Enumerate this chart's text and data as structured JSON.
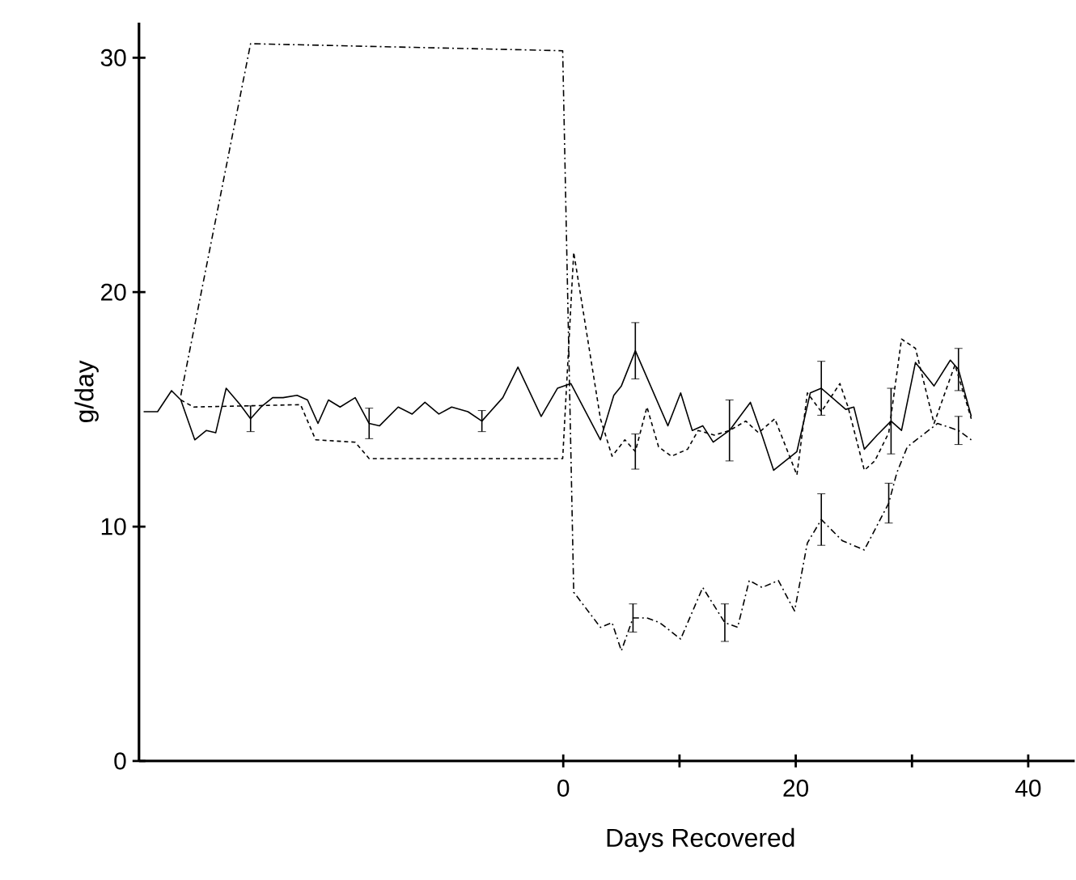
{
  "chart_data": {
    "type": "line",
    "xlabel": "Days Recovered",
    "ylabel": "g/day",
    "xlim": [
      -36.5,
      44
    ],
    "ylim": [
      0,
      31.5
    ],
    "xticks": [
      0,
      {
        "value": 10,
        "label": null
      },
      20,
      {
        "value": 30,
        "label": null
      },
      40
    ],
    "yticks": [
      0,
      10,
      20,
      30
    ],
    "series": [
      {
        "color": "#000000",
        "line_style": "solid",
        "x": [
          -36.1,
          -34.9,
          -33.7,
          -32.9,
          -31.7,
          -30.7,
          -29.9,
          -29.0,
          -27.8,
          -26.9,
          -26.0,
          -25.0,
          -24.1,
          -22.9,
          -22.0,
          -21.1,
          -20.2,
          -19.2,
          -17.9,
          -16.7,
          -15.8,
          -14.2,
          -13.0,
          -11.9,
          -10.7,
          -9.6,
          -8.2,
          -7.0,
          -5.2,
          -3.9,
          -1.9,
          -0.5,
          0.65,
          3.2,
          4.35,
          5.0,
          6.2,
          9.0,
          10.1,
          11.1,
          12.0,
          12.9,
          14.3,
          16.1,
          17.1,
          18.1,
          20.1,
          21.25,
          22.2,
          24.3,
          25.0,
          25.9,
          27.0,
          28.2,
          29.1,
          30.3,
          31.9,
          33.3,
          34.0,
          35.1
        ],
        "values": [
          14.9,
          14.9,
          15.8,
          15.4,
          13.7,
          14.1,
          14.0,
          15.9,
          15.2,
          14.6,
          15.1,
          15.5,
          15.5,
          15.6,
          15.4,
          14.4,
          15.4,
          15.1,
          15.5,
          14.4,
          14.3,
          15.1,
          14.8,
          15.3,
          14.8,
          15.1,
          14.9,
          14.5,
          15.5,
          16.8,
          14.7,
          15.9,
          16.1,
          13.7,
          15.6,
          16.0,
          17.5,
          14.3,
          15.7,
          14.1,
          14.3,
          13.6,
          14.1,
          15.3,
          13.9,
          12.4,
          13.2,
          15.7,
          15.9,
          15.0,
          15.1,
          13.3,
          13.9,
          14.5,
          14.1,
          17.0,
          16.0,
          17.1,
          16.7,
          14.7
        ],
        "errors": [
          null,
          null,
          null,
          null,
          null,
          null,
          null,
          null,
          null,
          0.55,
          null,
          null,
          null,
          null,
          null,
          null,
          null,
          null,
          null,
          0.65,
          null,
          null,
          null,
          null,
          null,
          null,
          null,
          0.45,
          null,
          null,
          null,
          null,
          null,
          null,
          null,
          null,
          1.2,
          null,
          null,
          null,
          null,
          null,
          1.3,
          null,
          null,
          null,
          null,
          null,
          1.15,
          null,
          null,
          null,
          null,
          1.4,
          null,
          null,
          null,
          null,
          0.9,
          null
        ]
      },
      {
        "color": "#000000",
        "line_style": "dotted",
        "x": [
          -32.9,
          -31.8,
          -22.6,
          -21.3,
          -17.9,
          -16.7,
          -0.05,
          0.9,
          3.2,
          4.2,
          5.3,
          6.2,
          7.2,
          8.2,
          9.3,
          10.7,
          11.6,
          13.0,
          14.3,
          15.7,
          16.8,
          18.2,
          20.1,
          21.0,
          22.2,
          23.8,
          24.5,
          25.9,
          26.8,
          28.0,
          29.1,
          30.3,
          31.9,
          33.7,
          35.1
        ],
        "values": [
          15.4,
          15.1,
          15.2,
          13.7,
          13.6,
          12.9,
          12.9,
          21.7,
          14.6,
          13.0,
          13.7,
          13.2,
          15.1,
          13.4,
          13.0,
          13.3,
          14.1,
          13.9,
          14.1,
          14.5,
          14.0,
          14.6,
          12.2,
          15.7,
          14.9,
          16.1,
          15.1,
          12.4,
          12.8,
          14.0,
          18.0,
          17.6,
          14.4,
          16.9,
          14.6
        ],
        "errors": [
          null,
          null,
          null,
          null,
          null,
          null,
          null,
          null,
          null,
          null,
          null,
          0.75,
          null,
          null,
          null,
          null,
          null,
          null,
          null,
          null,
          null,
          null,
          null,
          null,
          null,
          null,
          null,
          null,
          null,
          null,
          null,
          null,
          null,
          null,
          null
        ]
      },
      {
        "color": "#000000",
        "line_style": "dashdot",
        "x": [
          -32.9,
          -26.9,
          -0.05,
          0.9,
          3.2,
          4.2,
          5.0,
          6.0,
          7.2,
          8.3,
          10.1,
          12.0,
          13.9,
          15.0,
          16.0,
          17.1,
          18.5,
          19.9,
          21.0,
          22.2,
          24.0,
          25.9,
          28.0,
          28.7,
          29.6,
          32.2,
          34.0,
          35.1
        ],
        "values": [
          15.6,
          30.6,
          30.3,
          7.2,
          5.7,
          5.9,
          4.7,
          6.1,
          6.1,
          5.9,
          5.2,
          7.4,
          5.9,
          5.7,
          7.7,
          7.4,
          7.7,
          6.4,
          9.3,
          10.3,
          9.4,
          9.0,
          11.0,
          12.3,
          13.4,
          14.4,
          14.1,
          13.7
        ],
        "errors": [
          null,
          null,
          null,
          null,
          null,
          null,
          null,
          0.6,
          null,
          null,
          null,
          null,
          0.8,
          null,
          null,
          null,
          null,
          null,
          null,
          1.1,
          null,
          null,
          0.85,
          null,
          null,
          null,
          0.6,
          null
        ]
      }
    ]
  }
}
